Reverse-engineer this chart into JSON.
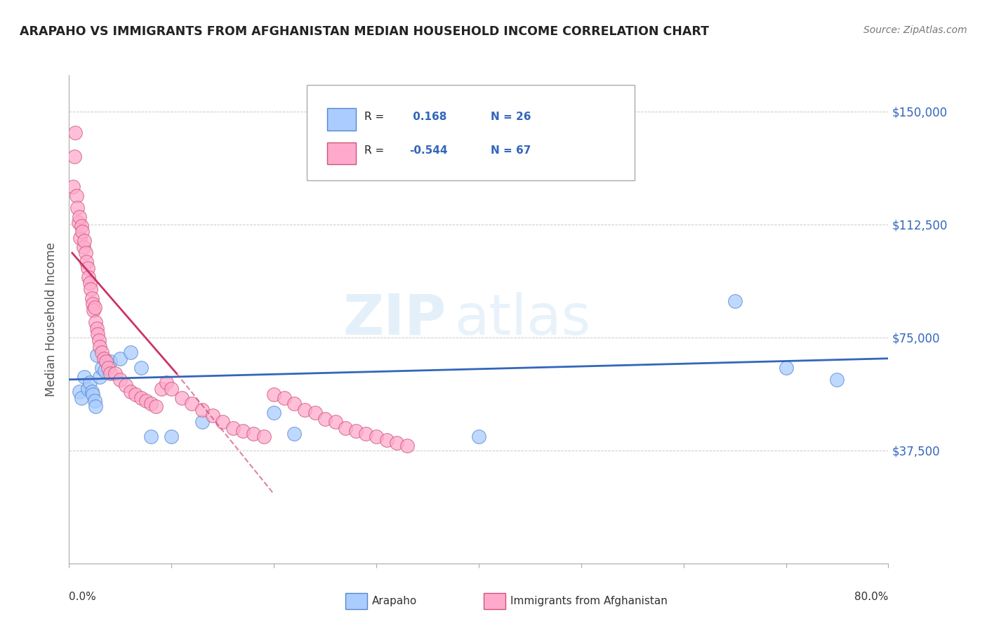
{
  "title": "ARAPAHO VS IMMIGRANTS FROM AFGHANISTAN MEDIAN HOUSEHOLD INCOME CORRELATION CHART",
  "source": "Source: ZipAtlas.com",
  "ylabel": "Median Household Income",
  "yticks": [
    0,
    37500,
    75000,
    112500,
    150000
  ],
  "ytick_labels": [
    "",
    "$37,500",
    "$75,000",
    "$112,500",
    "$150,000"
  ],
  "xlim": [
    0.0,
    80.0
  ],
  "ylim": [
    0,
    162000
  ],
  "watermark_zip": "ZIP",
  "watermark_atlas": "atlas",
  "bg_color": "#ffffff",
  "grid_color": "#bbbbbb",
  "blue_dot_color": "#aaccff",
  "pink_dot_color": "#ffaacc",
  "blue_edge_color": "#5588cc",
  "pink_edge_color": "#cc5577",
  "blue_line_color": "#3366bb",
  "pink_line_color": "#cc3366",
  "title_color": "#222222",
  "source_color": "#777777",
  "ytick_color": "#3366bb",
  "legend_text_color": "#222222",
  "legend_val_color": "#3366bb",
  "arapaho_x": [
    1.0,
    1.2,
    1.5,
    1.8,
    2.0,
    2.2,
    2.3,
    2.5,
    2.6,
    2.7,
    3.0,
    3.2,
    3.5,
    4.0,
    5.0,
    6.0,
    7.0,
    8.0,
    10.0,
    13.0,
    20.0,
    22.0,
    40.0,
    65.0,
    70.0,
    75.0
  ],
  "arapaho_y": [
    57000,
    55000,
    62000,
    58000,
    60000,
    57000,
    56000,
    54000,
    52000,
    69000,
    62000,
    65000,
    64000,
    67000,
    68000,
    70000,
    65000,
    42000,
    42000,
    47000,
    50000,
    43000,
    42000,
    87000,
    65000,
    61000
  ],
  "afghan_x": [
    0.4,
    0.5,
    0.6,
    0.7,
    0.8,
    0.9,
    1.0,
    1.1,
    1.2,
    1.3,
    1.4,
    1.5,
    1.6,
    1.7,
    1.8,
    1.9,
    2.0,
    2.1,
    2.2,
    2.3,
    2.4,
    2.5,
    2.6,
    2.7,
    2.8,
    2.9,
    3.0,
    3.2,
    3.4,
    3.6,
    3.8,
    4.0,
    4.5,
    5.0,
    5.5,
    6.0,
    6.5,
    7.0,
    7.5,
    8.0,
    8.5,
    9.0,
    9.5,
    10.0,
    11.0,
    12.0,
    13.0,
    14.0,
    15.0,
    16.0,
    17.0,
    18.0,
    19.0,
    20.0,
    21.0,
    22.0,
    23.0,
    24.0,
    25.0,
    26.0,
    27.0,
    28.0,
    29.0,
    30.0,
    31.0,
    32.0,
    33.0
  ],
  "afghan_y": [
    125000,
    135000,
    143000,
    122000,
    118000,
    113000,
    115000,
    108000,
    112000,
    110000,
    105000,
    107000,
    103000,
    100000,
    98000,
    95000,
    93000,
    91000,
    88000,
    86000,
    84000,
    85000,
    80000,
    78000,
    76000,
    74000,
    72000,
    70000,
    68000,
    67000,
    65000,
    63000,
    63000,
    61000,
    59000,
    57000,
    56000,
    55000,
    54000,
    53000,
    52000,
    58000,
    60000,
    58000,
    55000,
    53000,
    51000,
    49000,
    47000,
    45000,
    44000,
    43000,
    42000,
    56000,
    55000,
    53000,
    51000,
    50000,
    48000,
    47000,
    45000,
    44000,
    43000,
    42000,
    41000,
    40000,
    39000
  ],
  "blue_line_x0": 0.0,
  "blue_line_x1": 80.0,
  "blue_line_y0": 61000,
  "blue_line_y1": 68000,
  "pink_line_x0": 0.3,
  "pink_line_x1": 10.5,
  "pink_line_y0": 103000,
  "pink_line_y1": 63000,
  "pink_dash_x0": 10.5,
  "pink_dash_x1": 20.0,
  "pink_dash_y0": 63000,
  "pink_dash_y1": 23000
}
